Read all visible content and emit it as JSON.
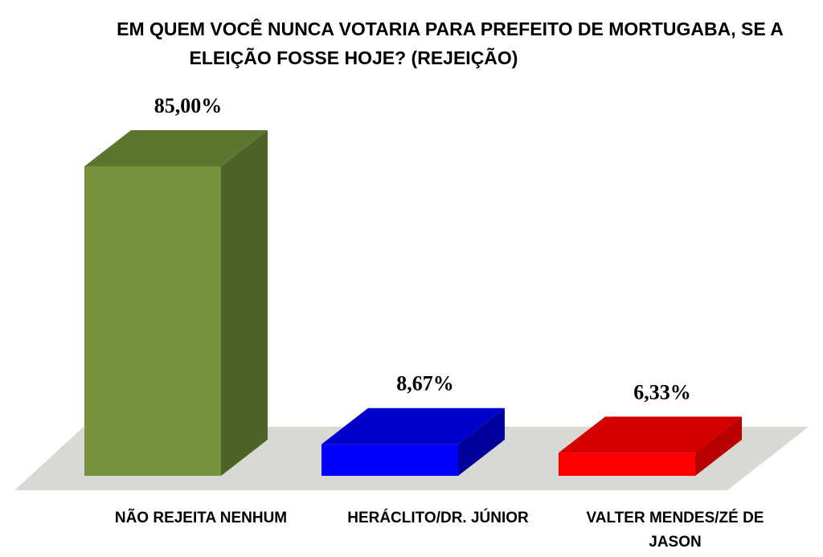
{
  "chart_data": {
    "type": "bar",
    "title_lines": [
      "EM QUEM VOCÊ NUNCA VOTARIA PARA PREFEITO DE MORTUGABA, SE A",
      "ELEIÇÃO FOSSE HOJE? (REJEIÇÃO)"
    ],
    "categories": [
      [
        "NÃO REJEITA NENHUM"
      ],
      [
        "HERÁCLITO/DR. JÚNIOR"
      ],
      [
        "VALTER MENDES/ZÉ DE",
        "JASON"
      ]
    ],
    "values": [
      85.0,
      8.67,
      6.33
    ],
    "data_labels": [
      "85,00%",
      "8,67%",
      "6,33%"
    ],
    "ylim": [
      0,
      100
    ],
    "grid": false,
    "legend": "none",
    "colors": [
      {
        "front": "#77933C",
        "side": "#4F6228",
        "top": "#5E7530"
      },
      {
        "front": "#0000FF",
        "side": "#00009C",
        "top": "#0000CC"
      },
      {
        "front": "#FF0000",
        "side": "#B80000",
        "top": "#D40000"
      }
    ],
    "floor_color": "#D9D9D4"
  }
}
